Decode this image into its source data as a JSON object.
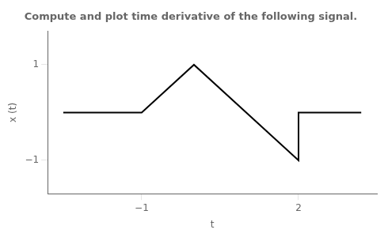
{
  "chart_data": {
    "type": "line",
    "title": "Compute and plot time derivative of the following signal.",
    "x": [
      -2.5,
      -1,
      0,
      2,
      2,
      3.2
    ],
    "values": [
      0,
      0,
      1,
      -1,
      0,
      0
    ],
    "xlabel": "t",
    "ylabel": "x (t)",
    "xlim": [
      -2.8,
      3.5
    ],
    "ylim": [
      -1.7,
      1.7
    ],
    "xticks": [
      {
        "value": -1,
        "label": "−1"
      },
      2
    ],
    "yticks": [
      1,
      {
        "value": -1,
        "label": "−1"
      }
    ],
    "color": "#000000",
    "grid": false
  }
}
